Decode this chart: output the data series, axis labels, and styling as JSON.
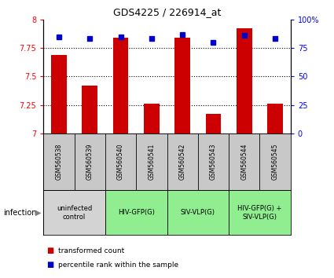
{
  "title": "GDS4225 / 226914_at",
  "samples": [
    "GSM560538",
    "GSM560539",
    "GSM560540",
    "GSM560541",
    "GSM560542",
    "GSM560543",
    "GSM560544",
    "GSM560545"
  ],
  "red_values": [
    7.69,
    7.42,
    7.84,
    7.26,
    7.84,
    7.17,
    7.92,
    7.26
  ],
  "blue_values": [
    85,
    83,
    85,
    83,
    87,
    80,
    86,
    83
  ],
  "ylim_left": [
    7.0,
    8.0
  ],
  "ylim_right": [
    0,
    100
  ],
  "yticks_left": [
    7.0,
    7.25,
    7.5,
    7.75,
    8.0
  ],
  "ytick_labels_left": [
    "7",
    "7.25",
    "7.5",
    "7.75",
    "8"
  ],
  "yticks_right": [
    0,
    25,
    50,
    75,
    100
  ],
  "ytick_labels_right": [
    "0",
    "25",
    "50",
    "75",
    "100%"
  ],
  "groups": [
    {
      "label": "uninfected\ncontrol",
      "start": 0,
      "end": 2,
      "color": "#d3d3d3"
    },
    {
      "label": "HIV-GFP(G)",
      "start": 2,
      "end": 4,
      "color": "#90ee90"
    },
    {
      "label": "SIV-VLP(G)",
      "start": 4,
      "end": 6,
      "color": "#90ee90"
    },
    {
      "label": "HIV-GFP(G) +\nSIV-VLP(G)",
      "start": 6,
      "end": 8,
      "color": "#90ee90"
    }
  ],
  "bar_color": "#cc0000",
  "dot_color": "#0000cc",
  "bar_width": 0.5,
  "background_color": "#ffffff",
  "sample_box_color": "#c8c8c8",
  "legend_label_red": "transformed count",
  "legend_label_blue": "percentile rank within the sample",
  "infection_label": "infection"
}
